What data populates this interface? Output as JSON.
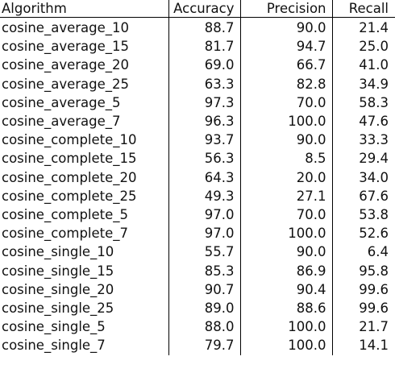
{
  "columns": [
    "Algorithm",
    "Accuracy",
    "Precision",
    "Recall"
  ],
  "rows": [
    [
      "cosine_average_10",
      "88.7",
      "90.0",
      "21.4"
    ],
    [
      "cosine_average_15",
      "81.7",
      "94.7",
      "25.0"
    ],
    [
      "cosine_average_20",
      "69.0",
      "66.7",
      "41.0"
    ],
    [
      "cosine_average_25",
      "63.3",
      "82.8",
      "34.9"
    ],
    [
      "cosine_average_5",
      "97.3",
      "70.0",
      "58.3"
    ],
    [
      "cosine_average_7",
      "96.3",
      "100.0",
      "47.6"
    ],
    [
      "cosine_complete_10",
      "93.7",
      "90.0",
      "33.3"
    ],
    [
      "cosine_complete_15",
      "56.3",
      "8.5",
      "29.4"
    ],
    [
      "cosine_complete_20",
      "64.3",
      "20.0",
      "34.0"
    ],
    [
      "cosine_complete_25",
      "49.3",
      "27.1",
      "67.6"
    ],
    [
      "cosine_complete_5",
      "97.0",
      "70.0",
      "53.8"
    ],
    [
      "cosine_complete_7",
      "97.0",
      "100.0",
      "52.6"
    ],
    [
      "cosine_single_10",
      "55.7",
      "90.0",
      "6.4"
    ],
    [
      "cosine_single_15",
      "85.3",
      "86.9",
      "95.8"
    ],
    [
      "cosine_single_20",
      "90.7",
      "90.4",
      "99.6"
    ],
    [
      "cosine_single_25",
      "89.0",
      "88.6",
      "99.6"
    ],
    [
      "cosine_single_5",
      "88.0",
      "100.0",
      "21.7"
    ],
    [
      "cosine_single_7",
      "79.7",
      "100.0",
      "14.1"
    ]
  ]
}
